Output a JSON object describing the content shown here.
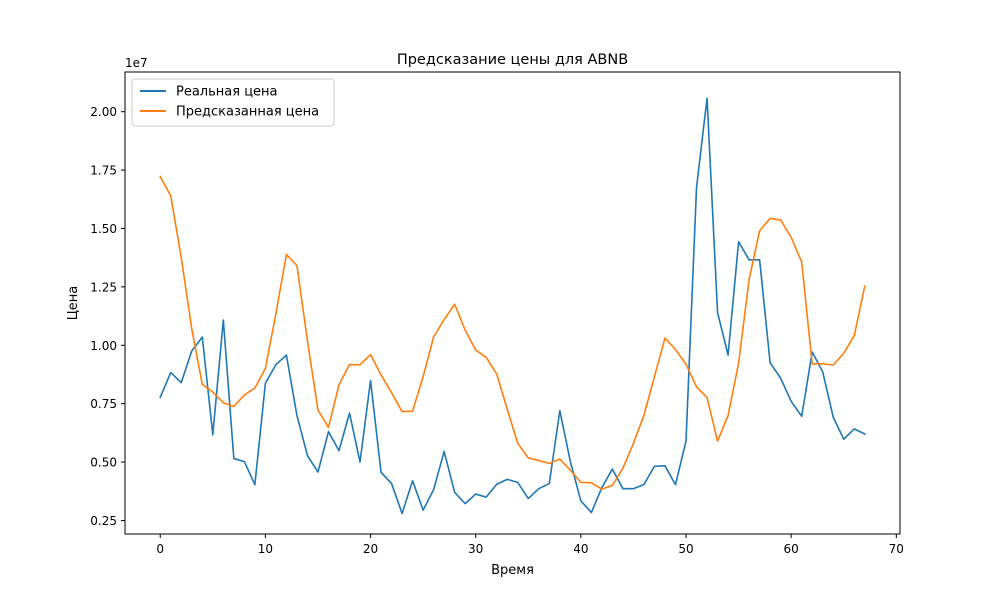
{
  "chart_data": {
    "type": "line",
    "title": "Предсказание цены для ABNB",
    "xlabel": "Время",
    "ylabel": "Цена",
    "y_offset_label": "1e7",
    "xlim": [
      -3.35,
      70.35
    ],
    "ylim": [
      0.192,
      2.17
    ],
    "x_ticks": [
      0,
      10,
      20,
      30,
      40,
      50,
      60,
      70
    ],
    "y_ticks": [
      0.25,
      0.5,
      0.75,
      1.0,
      1.25,
      1.5,
      1.75,
      2.0
    ],
    "y_tick_labels": [
      "0.25",
      "0.50",
      "0.75",
      "1.00",
      "1.25",
      "1.50",
      "1.75",
      "2.00"
    ],
    "grid": false,
    "legend_position": "upper-left",
    "series": [
      {
        "name": "Реальная цена",
        "color": "#1f77b4",
        "values": [
          0.777,
          0.883,
          0.84,
          0.976,
          1.035,
          0.617,
          1.108,
          0.515,
          0.502,
          0.403,
          0.837,
          0.917,
          0.958,
          0.7,
          0.528,
          0.457,
          0.63,
          0.549,
          0.71,
          0.5,
          0.849,
          0.456,
          0.408,
          0.28,
          0.42,
          0.294,
          0.382,
          0.545,
          0.37,
          0.322,
          0.363,
          0.35,
          0.405,
          0.426,
          0.413,
          0.344,
          0.386,
          0.408,
          0.72,
          0.502,
          0.334,
          0.284,
          0.391,
          0.47,
          0.386,
          0.386,
          0.404,
          0.482,
          0.484,
          0.403,
          0.59,
          1.675,
          2.058,
          1.14,
          0.958,
          1.443,
          1.366,
          1.366,
          0.925,
          0.859,
          0.76,
          0.696,
          0.971,
          0.886,
          0.692,
          0.598,
          0.642,
          0.62
        ]
      },
      {
        "name": "Предсказанная цена",
        "color": "#ff7f0e",
        "values": [
          1.722,
          1.64,
          1.375,
          1.07,
          0.833,
          0.799,
          0.754,
          0.738,
          0.787,
          0.817,
          0.901,
          1.135,
          1.389,
          1.341,
          1.02,
          0.723,
          0.648,
          0.831,
          0.917,
          0.917,
          0.96,
          0.873,
          0.797,
          0.716,
          0.718,
          0.866,
          1.036,
          1.11,
          1.176,
          1.065,
          0.98,
          0.948,
          0.877,
          0.726,
          0.58,
          0.518,
          0.507,
          0.494,
          0.513,
          0.465,
          0.413,
          0.411,
          0.384,
          0.4,
          0.474,
          0.58,
          0.7,
          0.866,
          1.031,
          0.982,
          0.919,
          0.822,
          0.776,
          0.59,
          0.699,
          0.923,
          1.282,
          1.49,
          1.543,
          1.536,
          1.462,
          1.357,
          0.92,
          0.921,
          0.915,
          0.966,
          1.041,
          1.253
        ]
      }
    ]
  }
}
